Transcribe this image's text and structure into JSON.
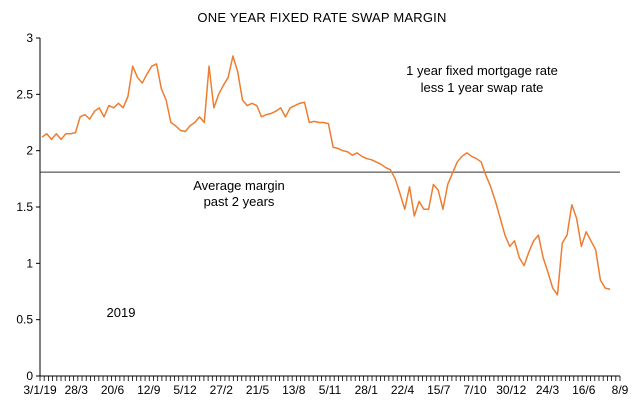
{
  "chart_data": {
    "type": "line",
    "title": "ONE YEAR FIXED RATE SWAP MARGIN",
    "xlabel": "",
    "ylabel": "",
    "ylim": [
      0,
      3
    ],
    "yticks": [
      "0",
      "0.5",
      "1",
      "1.5",
      "2",
      "2.5",
      "3"
    ],
    "xticks": [
      "3/1/19",
      "28/3",
      "20/6",
      "12/9",
      "5/12",
      "27/2",
      "21/5",
      "13/8",
      "5/11",
      "28/1",
      "22/4",
      "15/7",
      "7/10",
      "30/12",
      "24/3",
      "16/6",
      "8/9"
    ],
    "weeks_total": 139,
    "grid": false,
    "colors": {
      "series": "#ED7D31",
      "average": "#333333",
      "axis": "#000000"
    },
    "average_margin": {
      "value": 1.81,
      "label_line1": "Average margin",
      "label_line2": "past 2 years"
    },
    "annotation": {
      "line1": "1 year fixed mortgage rate",
      "line2": "less 1 year swap rate"
    },
    "year_label": "2019",
    "series": [
      {
        "values": [
          2.12,
          2.15,
          2.1,
          2.15,
          2.1,
          2.15,
          2.15,
          2.16,
          2.3,
          2.32,
          2.28,
          2.35,
          2.38,
          2.3,
          2.4,
          2.38,
          2.42,
          2.38,
          2.48,
          2.75,
          2.65,
          2.6,
          2.68,
          2.75,
          2.77,
          2.55,
          2.45,
          2.25,
          2.22,
          2.18,
          2.17,
          2.22,
          2.25,
          2.3,
          2.25,
          2.75,
          2.38,
          2.5,
          2.58,
          2.65,
          2.84,
          2.7,
          2.45,
          2.4,
          2.42,
          2.4,
          2.3,
          2.32,
          2.33,
          2.35,
          2.38,
          2.3,
          2.38,
          2.4,
          2.42,
          2.43,
          2.25,
          2.26,
          2.25,
          2.25,
          2.24,
          2.03,
          2.02,
          2.0,
          1.99,
          1.96,
          1.98,
          1.95,
          1.93,
          1.92,
          1.9,
          1.88,
          1.85,
          1.83,
          1.75,
          1.62,
          1.48,
          1.68,
          1.42,
          1.55,
          1.48,
          1.48,
          1.7,
          1.65,
          1.48,
          1.7,
          1.8,
          1.9,
          1.95,
          1.98,
          1.95,
          1.93,
          1.9,
          1.78,
          1.68,
          1.55,
          1.4,
          1.25,
          1.15,
          1.2,
          1.05,
          0.98,
          1.1,
          1.2,
          1.25,
          1.05,
          0.92,
          0.78,
          0.72,
          1.18,
          1.25,
          1.52,
          1.4,
          1.15,
          1.28,
          1.2,
          1.12,
          0.85,
          0.78,
          0.77
        ]
      }
    ]
  }
}
